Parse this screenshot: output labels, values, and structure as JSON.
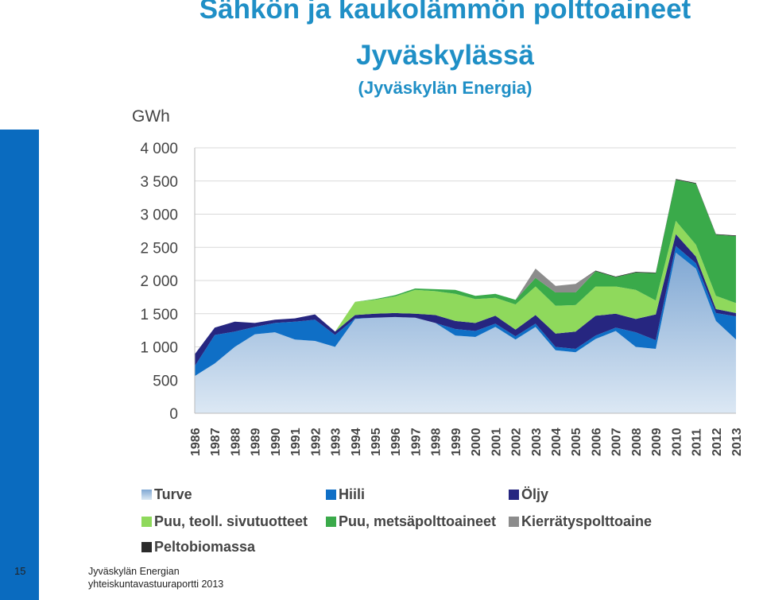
{
  "slide": {
    "title_line1": "Sähkön ja kaukolämmön polttoaineet",
    "title_line2": "Jyväskylässä",
    "subtitle": "(Jyväskylän Energia)",
    "page_number": "15",
    "footer_line1": "Jyväskylän Energian",
    "footer_line2": "yhteiskuntavastuuraportti 2013"
  },
  "colors": {
    "Turve": "#a9c6e4",
    "Hiili": "#0f6fc6",
    "Öljy": "#262680",
    "Puu, teoll. sivutuotteet": "#8fd95c",
    "Puu, metsäpolttoaineet": "#3aaa4a",
    "Kierrätyspolttoaine": "#8c8c8c",
    "Peltobiomassa": "#2b2b2b",
    "accent": "#1f8fc6"
  },
  "chart_data": {
    "type": "area",
    "stacked": true,
    "title": "",
    "ylabel": "GWh",
    "xlabel": "",
    "ylim": [
      0,
      4000
    ],
    "yticks": [
      0,
      500,
      1000,
      1500,
      2000,
      2500,
      3000,
      3500,
      4000
    ],
    "ytick_labels": [
      "0",
      "500",
      "1 000",
      "1 500",
      "2 000",
      "2 500",
      "3 000",
      "3 500",
      "4 000"
    ],
    "grid": true,
    "legend_position": "bottom",
    "x": [
      "1986",
      "1987",
      "1988",
      "1989",
      "1990",
      "1991",
      "1992",
      "1993",
      "1994",
      "1995",
      "1996",
      "1997",
      "1998",
      "1999",
      "2000",
      "2001",
      "2002",
      "2003",
      "2004",
      "2005",
      "2006",
      "2007",
      "2008",
      "2009",
      "2010",
      "2011",
      "2012",
      "2013"
    ],
    "series": [
      {
        "name": "Turve",
        "values": [
          560,
          750,
          1000,
          1190,
          1220,
          1110,
          1090,
          1000,
          1420,
          1440,
          1450,
          1440,
          1360,
          1170,
          1150,
          1300,
          1110,
          1300,
          950,
          920,
          1120,
          1240,
          1000,
          970,
          2420,
          2180,
          1390,
          1110
        ]
      },
      {
        "name": "Hiili",
        "values": [
          150,
          430,
          230,
          110,
          140,
          270,
          320,
          180,
          10,
          0,
          0,
          0,
          0,
          100,
          90,
          50,
          50,
          50,
          50,
          50,
          50,
          50,
          220,
          130,
          100,
          80,
          120,
          350
        ]
      },
      {
        "name": "Öljy",
        "values": [
          180,
          110,
          150,
          60,
          50,
          50,
          80,
          50,
          50,
          60,
          60,
          60,
          120,
          120,
          120,
          120,
          100,
          130,
          200,
          260,
          300,
          210,
          200,
          390,
          180,
          100,
          60,
          50
        ]
      },
      {
        "name": "Puu, teoll. sivutuotteet",
        "values": [
          0,
          0,
          0,
          0,
          0,
          0,
          0,
          0,
          200,
          210,
          250,
          360,
          360,
          410,
          360,
          270,
          380,
          430,
          420,
          400,
          440,
          410,
          440,
          210,
          200,
          180,
          200,
          150
        ]
      },
      {
        "name": "Puu, metsäpolttoaineet",
        "values": [
          0,
          0,
          0,
          0,
          0,
          0,
          0,
          0,
          0,
          10,
          20,
          20,
          30,
          60,
          50,
          60,
          70,
          130,
          200,
          190,
          230,
          140,
          260,
          410,
          620,
          920,
          920,
          1010
        ]
      },
      {
        "name": "Kierrätyspolttoaine",
        "values": [
          0,
          0,
          0,
          0,
          0,
          0,
          0,
          0,
          0,
          0,
          0,
          0,
          0,
          0,
          0,
          0,
          0,
          140,
          100,
          130,
          0,
          0,
          0,
          0,
          0,
          0,
          0,
          0
        ]
      },
      {
        "name": "Peltobiomassa",
        "values": [
          0,
          0,
          0,
          0,
          0,
          0,
          0,
          0,
          0,
          0,
          0,
          0,
          0,
          0,
          0,
          0,
          0,
          0,
          0,
          0,
          10,
          10,
          10,
          10,
          10,
          10,
          10,
          10
        ]
      }
    ]
  }
}
